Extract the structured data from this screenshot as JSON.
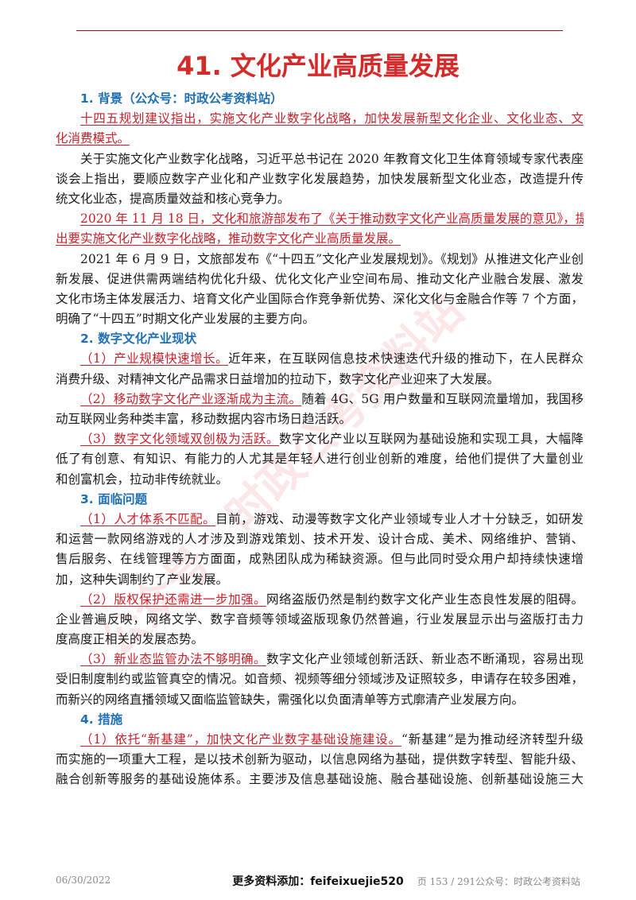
{
  "title": "41. 文化产业高质量发展",
  "sections": {
    "s1": {
      "heading": "1. 背景（公众号：时政公考资料站）",
      "p1": [
        "十四五规划建议指出，实施文化产业数字化战略，加快发展新型文化企业、文化业态、文",
        "化消费模式。"
      ],
      "p2": [
        "关于实施文化产业数字化战略，习近平总书记在 2020 年教育文化卫生体育领域专家代表座",
        "谈会上指出，要顺应数字产业化和产业数字化发展趋势，加快发展新型文化业态，改造提升传",
        "统文化业态，提高质量效益和核心竞争力。"
      ],
      "p3": [
        "2020 年 11 月 18 日，文化和旅游部发布了《关于推动数字文化产业高质量发展的意见》，提",
        "出要实施文化产业数字化战略，推动数字文化产业高质量发展。"
      ],
      "p4": [
        "2021 年 6 月 9 日，文旅部发布《“十四五”文化产业发展规划》。《规划》从推进文化产业创",
        "新发展、促进供需两端结构优化升级、优化文化产业空间布局、推动文化产业融合发展、激发",
        "文化市场主体发展活力、培育文化产业国际合作竞争新优势、深化文化与金融合作等 7 个方面，",
        "明确了“十四五”时期文化产业发展的主要方向。"
      ]
    },
    "s2": {
      "heading": "2. 数字文化产业现状",
      "i1": {
        "red": "（1）产业规模快速增长。",
        "rest": "近年来，在互联网信息技术快速迭代升级的推动下，在人民群众",
        "lines": [
          "消费升级、对精神文化产品需求日益增加的拉动下，数字文化产业迎来了大发展。"
        ]
      },
      "i2": {
        "red": "（2）移动数字文化产业逐渐成为主流。",
        "rest": "随着 4G、5G 用户数量和互联网流量增加，我国移",
        "lines": [
          "动互联网业务种类丰富，移动数据内容市场日趋活跃。"
        ]
      },
      "i3": {
        "red": "（3）数字文化领域双创极为活跃。",
        "rest": "数字文化产业以互联网为基础设施和实现工具，大幅降",
        "lines": [
          "低了有创意、有知识、有能力的人尤其是年轻人进行创业创新的难度，给他们提供了大量创业",
          "和创富机会，拉动非传统就业。"
        ]
      }
    },
    "s3": {
      "heading": "3. 面临问题",
      "i1": {
        "red": "（1）人才体系不匹配。",
        "rest": "目前，游戏、动漫等数字文化产业领域专业人才十分缺乏，如研发",
        "lines": [
          "和运营一款网络游戏的人才涉及到游戏策划、技术开发、设计合成、美术、网络维护、营销、",
          "售后服务、在线管理等方方面面，成熟团队成为稀缺资源。但与此同时受众用户却持续快速增",
          "加，这种失调制约了产业发展。"
        ]
      },
      "i2": {
        "red": "（2）版权保护还需进一步加强。",
        "rest": "网络盗版仍然是制约数字文化产业生态良性发展的阻碍。",
        "lines": [
          "企业普遍反映，网络文学、数字音频等领域盗版现象仍然普遍，行业发展显示出与盗版打击力",
          "度高度正相关的发展态势。"
        ]
      },
      "i3": {
        "red": "（3）新业态监管办法不够明确。",
        "rest": "数字文化产业领域创新活跃、新业态不断涌现，容易出现",
        "lines": [
          "受旧制度制约或监管真空的情况。如音频、视频等细分领域涉及证照较多，申请存在较多困难，",
          "而新兴的网络直播领域又面临监管缺失，需强化以负面清单等方式廓清产业发展方向。"
        ]
      }
    },
    "s4": {
      "heading": "4. 措施",
      "i1": {
        "red": "（1）依托“新基建”，加快文化产业数字基础设施建设。",
        "rest": "“新基建”是为推动经济转型升级",
        "lines": [
          "而实施的一项重大工程，是以技术创新为驱动，以信息网络为基础，提供数字转型、智能升级、",
          "融合创新等服务的基础设施体系。主要涉及信息基础设施、融合基础设施、创新基础设施三大"
        ]
      }
    }
  },
  "watermark": {
    "text": "公众号：时政公考资料站",
    "color": "#e04040"
  },
  "footer": {
    "date": "06/30/2022",
    "center": "更多资料添加：feifeixuejie520",
    "page": "页 153 / 291公众号：时政公考资料站"
  }
}
